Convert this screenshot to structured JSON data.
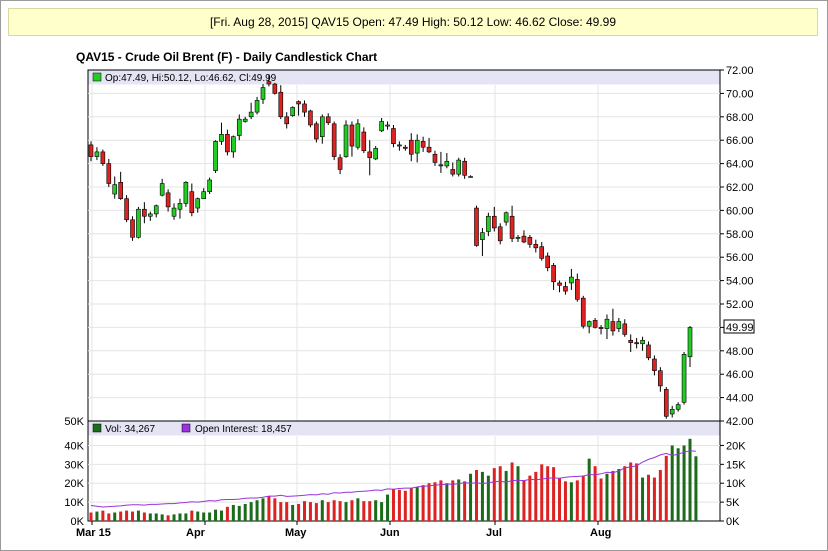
{
  "header": {
    "text": "[Fri. Aug 28, 2015] QAV15 Open: 47.49 High: 50.12 Low: 46.62 Close: 49.99"
  },
  "title": "QAV15 - Crude Oil Brent (F) - Daily Candlestick Chart",
  "colors": {
    "up": "#22cc22",
    "down": "#dd2222",
    "oi": "#9933dd",
    "legend_band": "#e4e4f4",
    "grid": "#e4e4e4"
  },
  "chart_data": [
    {
      "type": "candlestick",
      "legend": "Op:47.49, Hi:50.12, Lo:46.62, Cl:49.99",
      "ylim": [
        42,
        72
      ],
      "y_ticks": [
        "72.00",
        "70.00",
        "68.00",
        "66.00",
        "64.00",
        "62.00",
        "60.00",
        "58.00",
        "56.00",
        "54.00",
        "52.00",
        "50.00",
        "48.00",
        "46.00",
        "44.00",
        "42.00"
      ],
      "last_price_label": "49.99",
      "x_labels": [
        "Mar 15",
        "Apr",
        "May",
        "Jun",
        "Jul",
        "Aug"
      ],
      "candles": [
        [
          65.6,
          65.9,
          64.2,
          64.6
        ],
        [
          64.6,
          65.4,
          64.3,
          65.0
        ],
        [
          65.0,
          65.2,
          63.8,
          64.0
        ],
        [
          64.0,
          64.4,
          62.0,
          62.3
        ],
        [
          61.4,
          62.9,
          61.0,
          62.2
        ],
        [
          62.4,
          63.3,
          60.9,
          61.0
        ],
        [
          61.0,
          61.3,
          59.0,
          59.2
        ],
        [
          59.2,
          59.5,
          57.4,
          57.7
        ],
        [
          57.7,
          60.3,
          57.6,
          60.1
        ],
        [
          60.1,
          60.7,
          58.9,
          59.5
        ],
        [
          59.5,
          59.9,
          59.1,
          59.7
        ],
        [
          59.7,
          60.5,
          59.4,
          60.4
        ],
        [
          61.3,
          62.7,
          61.2,
          62.3
        ],
        [
          61.5,
          61.8,
          59.9,
          60.3
        ],
        [
          59.5,
          60.6,
          59.2,
          60.2
        ],
        [
          60.1,
          61.0,
          59.3,
          60.6
        ],
        [
          60.6,
          62.5,
          60.3,
          62.4
        ],
        [
          61.6,
          62.3,
          59.5,
          59.8
        ],
        [
          60.2,
          61.1,
          59.8,
          61.0
        ],
        [
          61.0,
          61.9,
          61.0,
          61.6
        ],
        [
          61.6,
          62.8,
          61.4,
          62.6
        ],
        [
          63.4,
          66.0,
          63.2,
          65.9
        ],
        [
          65.9,
          67.5,
          65.6,
          66.5
        ],
        [
          66.5,
          66.9,
          64.7,
          65.0
        ],
        [
          65.0,
          66.4,
          64.5,
          66.3
        ],
        [
          66.4,
          68.2,
          66.0,
          67.8
        ],
        [
          67.6,
          68.0,
          67.5,
          67.8
        ],
        [
          68.0,
          69.2,
          67.8,
          68.4
        ],
        [
          68.4,
          69.7,
          68.2,
          69.4
        ],
        [
          69.5,
          70.8,
          69.1,
          70.5
        ],
        [
          71.0,
          71.6,
          70.6,
          70.8
        ],
        [
          70.8,
          70.9,
          69.9,
          70.0
        ],
        [
          70.1,
          70.7,
          67.8,
          68.0
        ],
        [
          68.0,
          68.4,
          67.0,
          67.4
        ],
        [
          68.1,
          68.9,
          68.0,
          68.8
        ],
        [
          69.3,
          69.4,
          68.1,
          69.1
        ],
        [
          69.1,
          69.4,
          68.0,
          68.4
        ],
        [
          68.5,
          68.6,
          67.1,
          67.3
        ],
        [
          67.4,
          67.6,
          65.8,
          66.1
        ],
        [
          66.3,
          68.2,
          65.7,
          68.0
        ],
        [
          68.0,
          68.3,
          67.3,
          67.5
        ],
        [
          67.4,
          67.6,
          64.3,
          64.6
        ],
        [
          64.5,
          64.8,
          63.1,
          63.5
        ],
        [
          64.6,
          67.7,
          64.5,
          67.3
        ],
        [
          67.3,
          67.6,
          64.6,
          65.5
        ],
        [
          65.4,
          67.8,
          65.2,
          67.4
        ],
        [
          66.7,
          67.1,
          64.9,
          65.1
        ],
        [
          65.0,
          66.0,
          63.0,
          64.5
        ],
        [
          64.4,
          65.5,
          64.3,
          65.3
        ],
        [
          66.8,
          67.9,
          66.7,
          67.6
        ],
        [
          67.2,
          67.6,
          66.9,
          67.3
        ],
        [
          67.0,
          67.3,
          65.4,
          65.7
        ],
        [
          65.6,
          65.9,
          65.1,
          65.5
        ],
        [
          65.4,
          65.6,
          65.1,
          65.3
        ],
        [
          66.0,
          66.6,
          64.2,
          64.8
        ],
        [
          64.9,
          66.5,
          64.1,
          66.0
        ],
        [
          65.9,
          66.3,
          65.0,
          65.4
        ],
        [
          65.4,
          66.2,
          64.9,
          65.0
        ],
        [
          64.8,
          65.1,
          63.8,
          64.1
        ],
        [
          63.9,
          65.0,
          63.2,
          63.8
        ],
        [
          63.8,
          64.9,
          63.6,
          64.2
        ],
        [
          63.5,
          64.1,
          62.9,
          63.1
        ],
        [
          63.1,
          64.5,
          62.9,
          64.3
        ],
        [
          64.2,
          64.5,
          62.7,
          63.0
        ],
        [
          62.9,
          63.0,
          62.8,
          62.9
        ],
        [
          60.2,
          60.4,
          56.9,
          57.0
        ],
        [
          57.5,
          58.5,
          56.1,
          58.1
        ],
        [
          58.2,
          59.8,
          57.8,
          59.5
        ],
        [
          59.5,
          60.3,
          58.2,
          58.5
        ],
        [
          58.6,
          58.9,
          57.1,
          57.4
        ],
        [
          59.0,
          59.9,
          58.7,
          59.8
        ],
        [
          59.5,
          60.4,
          57.3,
          57.6
        ],
        [
          57.6,
          57.9,
          57.3,
          57.7
        ],
        [
          57.8,
          58.3,
          57.2,
          57.3
        ],
        [
          57.7,
          57.9,
          56.8,
          57.1
        ],
        [
          57.1,
          57.5,
          56.4,
          56.8
        ],
        [
          56.9,
          57.3,
          55.7,
          55.9
        ],
        [
          56.1,
          56.4,
          54.8,
          55.1
        ],
        [
          55.3,
          55.5,
          53.2,
          53.9
        ],
        [
          53.8,
          54.0,
          53.0,
          53.6
        ],
        [
          53.5,
          53.9,
          52.8,
          53.1
        ],
        [
          53.8,
          55.0,
          53.2,
          54.3
        ],
        [
          54.1,
          54.6,
          52.2,
          52.4
        ],
        [
          52.5,
          52.7,
          49.9,
          50.1
        ],
        [
          50.1,
          50.6,
          49.5,
          50.5
        ],
        [
          50.6,
          50.8,
          49.9,
          50.0
        ],
        [
          50.0,
          50.2,
          49.4,
          49.9
        ],
        [
          49.9,
          51.1,
          49.0,
          50.7
        ],
        [
          50.5,
          51.6,
          49.3,
          49.7
        ],
        [
          49.9,
          50.8,
          49.6,
          50.5
        ],
        [
          50.3,
          50.7,
          49.2,
          49.4
        ],
        [
          48.9,
          49.4,
          47.9,
          48.7
        ],
        [
          48.7,
          49.1,
          48.2,
          48.6
        ],
        [
          48.6,
          49.2,
          48.0,
          48.9
        ],
        [
          48.5,
          48.8,
          47.2,
          47.4
        ],
        [
          47.3,
          47.6,
          45.9,
          46.3
        ],
        [
          46.3,
          46.6,
          44.5,
          45.0
        ],
        [
          44.7,
          44.9,
          42.2,
          42.4
        ],
        [
          42.6,
          43.3,
          42.3,
          43.0
        ],
        [
          43.0,
          43.6,
          42.8,
          43.4
        ],
        [
          43.6,
          47.9,
          43.4,
          47.7
        ],
        [
          47.49,
          50.12,
          46.62,
          49.99
        ]
      ]
    },
    {
      "type": "bar",
      "legend_volume": "Vol: 34,267",
      "legend_oi": "Open Interest: 18,457",
      "ylim_left": [
        0,
        50000
      ],
      "left_ticks": [
        "50K",
        "40K",
        "30K",
        "20K",
        "10K",
        "0K"
      ],
      "ylim_right": [
        0,
        25000
      ],
      "right_ticks": [
        "20K",
        "15K",
        "10K",
        "5K",
        "0K"
      ],
      "volume": [
        4500,
        5000,
        5500,
        4000,
        4500,
        5000,
        5500,
        5000,
        5500,
        4500,
        4000,
        4000,
        3500,
        3000,
        3500,
        4000,
        4000,
        5500,
        5000,
        4500,
        4500,
        6000,
        5500,
        7500,
        8500,
        8000,
        9000,
        10000,
        11000,
        12000,
        13000,
        12000,
        10000,
        10000,
        8500,
        9000,
        10500,
        10000,
        9500,
        11000,
        10000,
        11000,
        10500,
        10000,
        11000,
        12000,
        10500,
        10500,
        11000,
        10000,
        14000,
        17000,
        16500,
        16000,
        17500,
        18000,
        19000,
        20000,
        20500,
        21500,
        20000,
        21500,
        22000,
        21000,
        25000,
        27000,
        26000,
        24000,
        28000,
        29000,
        26500,
        31000,
        29000,
        21500,
        24000,
        26000,
        30000,
        29000,
        28500,
        22500,
        21000,
        20500,
        21500,
        24000,
        33000,
        29000,
        22500,
        25000,
        26500,
        27500,
        29000,
        31000,
        30500,
        23000,
        24500,
        23000,
        27000,
        34500,
        40000,
        38500,
        40000,
        43500,
        34267
      ],
      "open_interest": [
        4100,
        3900,
        3700,
        3800,
        3900,
        4000,
        4200,
        4300,
        4300,
        4200,
        4400,
        4400,
        4500,
        4600,
        4600,
        4800,
        4900,
        5100,
        5000,
        5200,
        5400,
        5300,
        5600,
        5700,
        5700,
        5800,
        6000,
        6100,
        6100,
        6300,
        6600,
        6600,
        6800,
        6500,
        6600,
        6700,
        6800,
        7000,
        6900,
        7200,
        7100,
        7500,
        7400,
        7600,
        7600,
        7800,
        7900,
        8000,
        8200,
        8100,
        8500,
        8400,
        8600,
        8700,
        8700,
        9000,
        9200,
        9300,
        9500,
        9600,
        9800,
        9700,
        9900,
        10100,
        10000,
        10100,
        9900,
        10100,
        10400,
        10500,
        10300,
        10700,
        10800,
        10700,
        11000,
        10900,
        11100,
        11300,
        11400,
        11300,
        11600,
        11700,
        11800,
        11900,
        12300,
        12200,
        12500,
        12900,
        12800,
        13200,
        14100,
        14300,
        14600,
        15600,
        16300,
        16800,
        17500,
        17900,
        17300,
        17700,
        18200,
        18600,
        18457
      ]
    }
  ]
}
